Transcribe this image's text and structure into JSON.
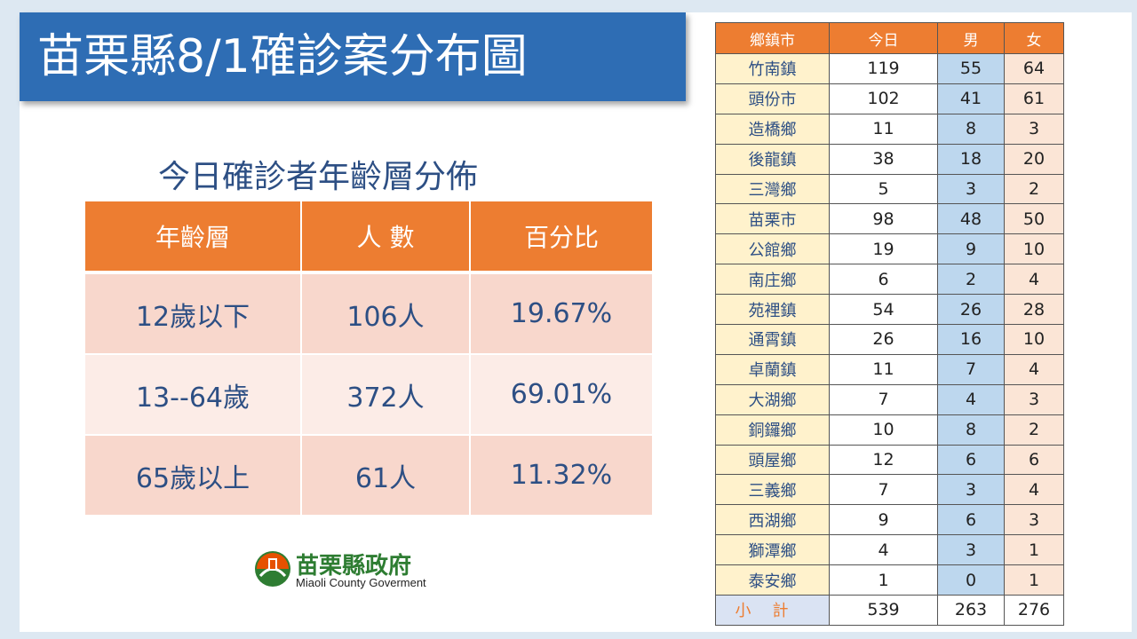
{
  "title": "苗栗縣8/1確診案分布圖",
  "age_table": {
    "subtitle": "今日確診者年齡層分佈",
    "headers": [
      "年齡層",
      "人 數",
      "百分比"
    ],
    "rows": [
      [
        "12歲以下",
        "106人",
        "19.67%"
      ],
      [
        "13--64歲",
        "372人",
        "69.01%"
      ],
      [
        "65歲以上",
        "61人",
        "11.32%"
      ]
    ]
  },
  "logo": {
    "name_zh": "苗栗縣政府",
    "name_en": "Miaoli County Goverment"
  },
  "town_table": {
    "headers": [
      "鄉鎮市",
      "今日",
      "男",
      "女"
    ],
    "rows": [
      [
        "竹南鎮",
        "119",
        "55",
        "64"
      ],
      [
        "頭份市",
        "102",
        "41",
        "61"
      ],
      [
        "造橋鄉",
        "11",
        "8",
        "3"
      ],
      [
        "後龍鎮",
        "38",
        "18",
        "20"
      ],
      [
        "三灣鄉",
        "5",
        "3",
        "2"
      ],
      [
        "苗栗市",
        "98",
        "48",
        "50"
      ],
      [
        "公館鄉",
        "19",
        "9",
        "10"
      ],
      [
        "南庄鄉",
        "6",
        "2",
        "4"
      ],
      [
        "苑裡鎮",
        "54",
        "26",
        "28"
      ],
      [
        "通霄鎮",
        "26",
        "16",
        "10"
      ],
      [
        "卓蘭鎮",
        "11",
        "7",
        "4"
      ],
      [
        "大湖鄉",
        "7",
        "4",
        "3"
      ],
      [
        "銅鑼鄉",
        "10",
        "8",
        "2"
      ],
      [
        "頭屋鄉",
        "12",
        "6",
        "6"
      ],
      [
        "三義鄉",
        "7",
        "3",
        "4"
      ],
      [
        "西湖鄉",
        "9",
        "6",
        "3"
      ],
      [
        "獅潭鄉",
        "4",
        "3",
        "1"
      ],
      [
        "泰安鄉",
        "1",
        "0",
        "1"
      ]
    ],
    "total": [
      "小計",
      "539",
      "263",
      "276"
    ]
  }
}
